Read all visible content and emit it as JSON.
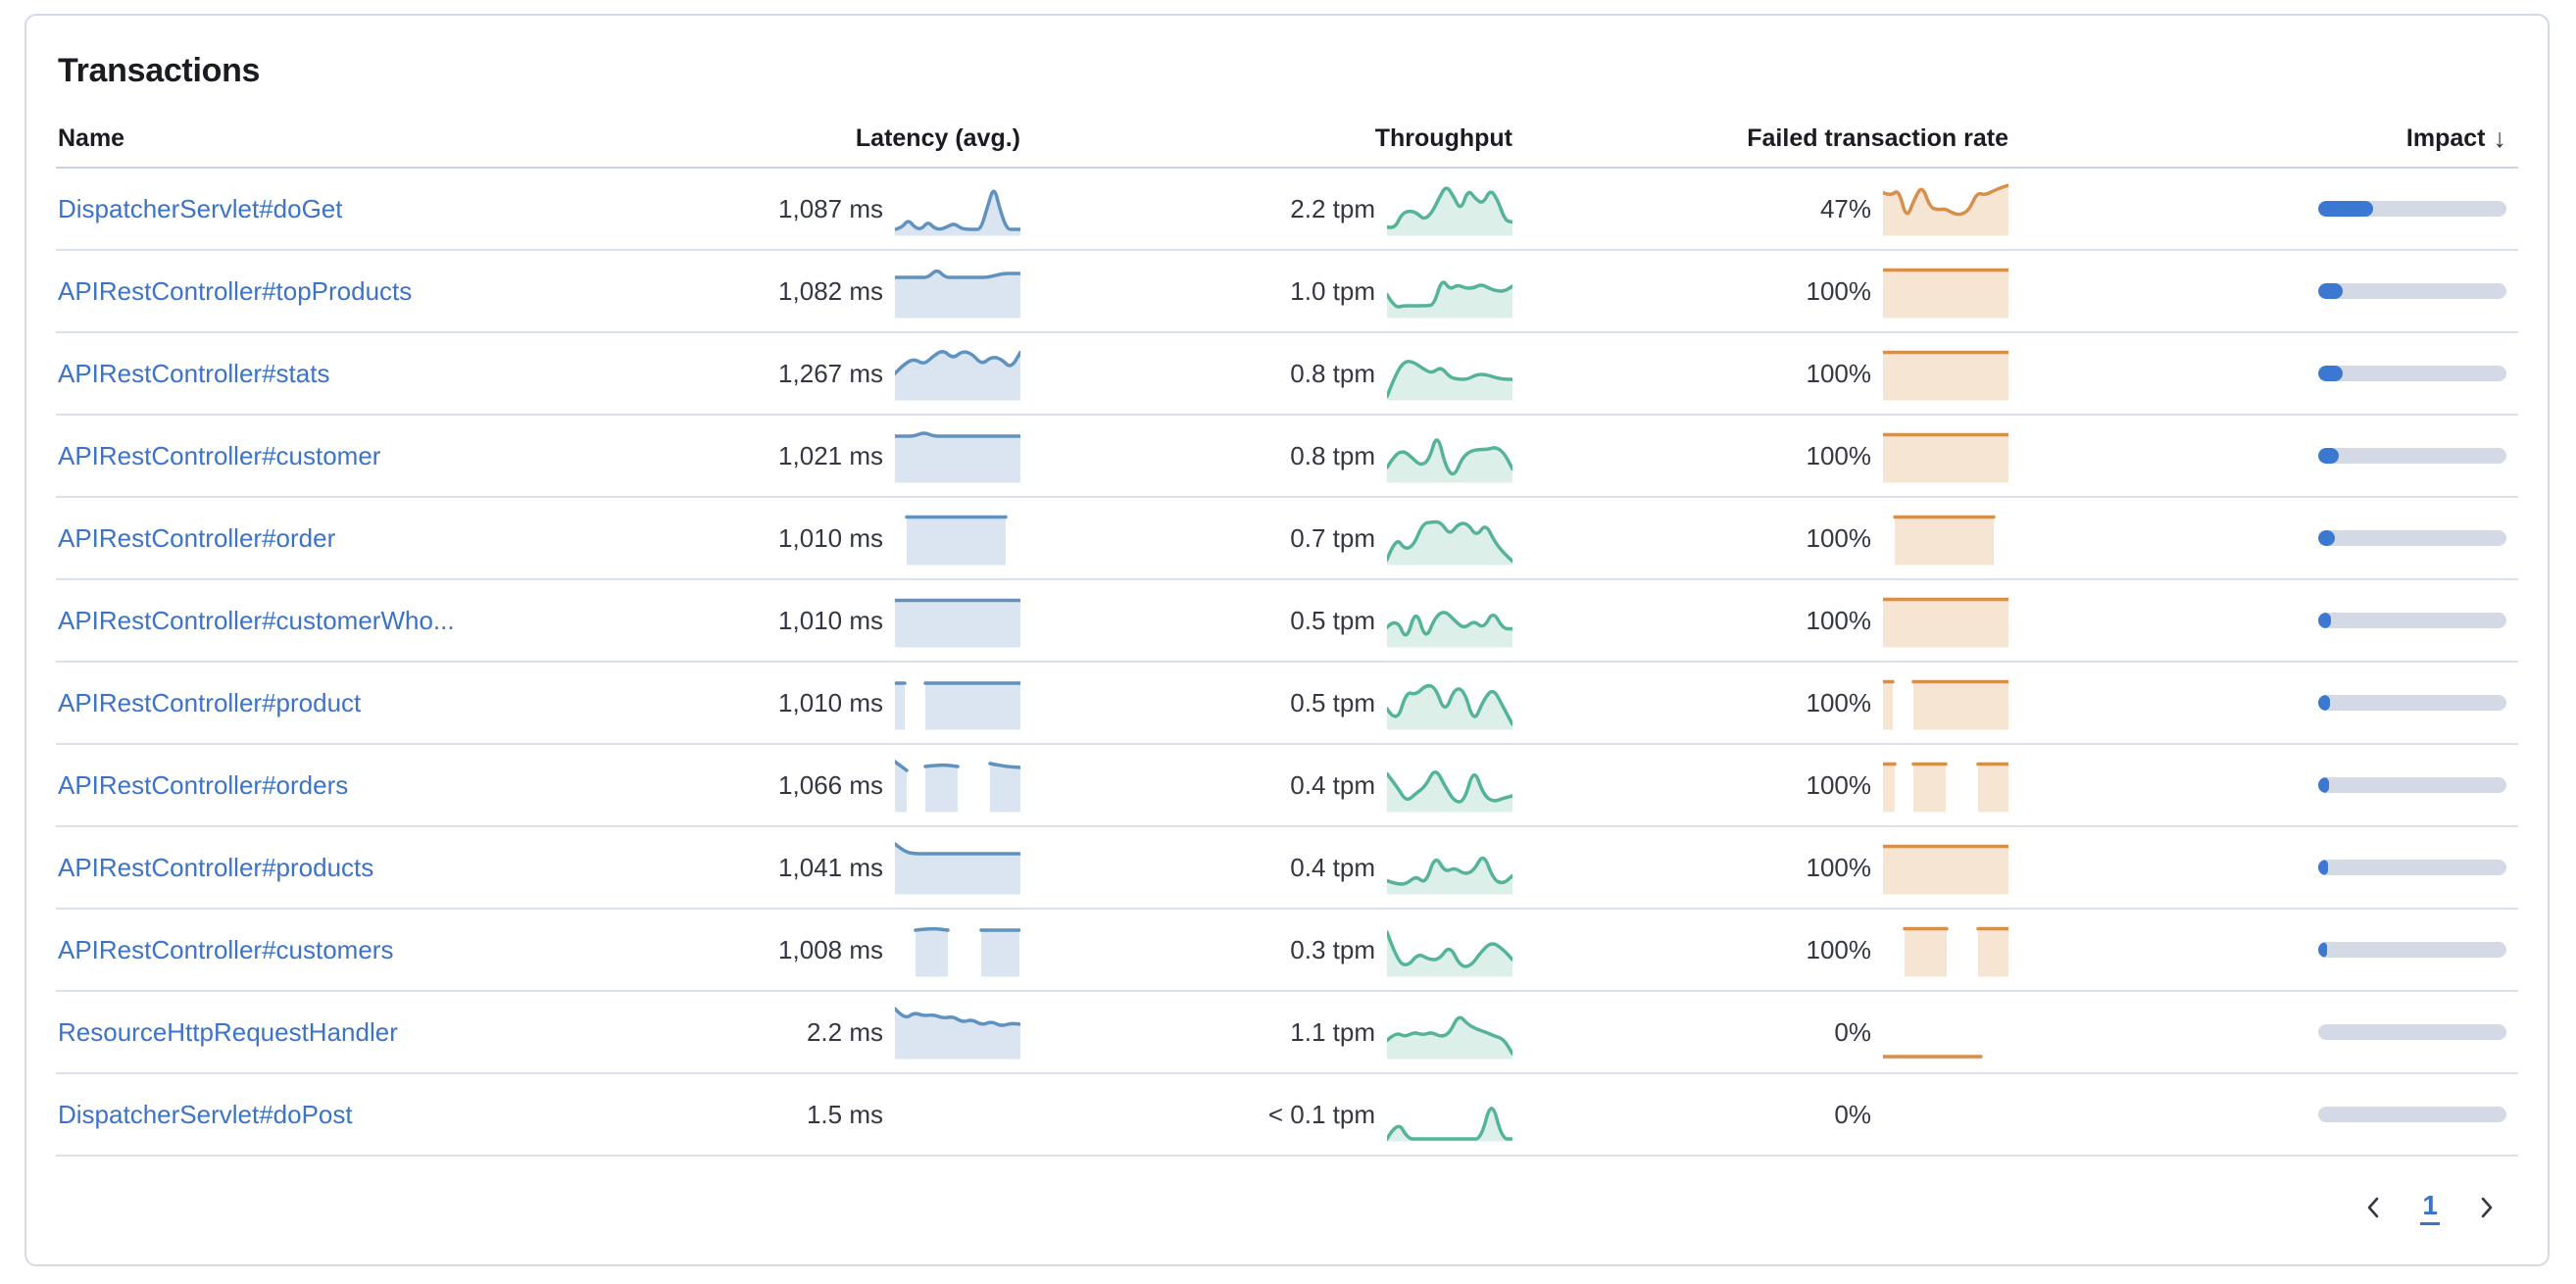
{
  "panel": {
    "title": "Transactions"
  },
  "colors": {
    "link": "#3b73c9",
    "latency_line": "#6092c0",
    "latency_fill": "#dae5f1",
    "throughput_line": "#54b399",
    "throughput_fill": "#dcefe8",
    "failed_line": "#d78f4c",
    "failed_fill": "#f6e5d3",
    "impact_fill": "#3b78d2",
    "impact_track": "#d3dae6"
  },
  "table": {
    "columns": [
      {
        "label": "Name"
      },
      {
        "label": "Latency (avg.)"
      },
      {
        "label": "Throughput"
      },
      {
        "label": "Failed transaction rate"
      },
      {
        "label": "Impact",
        "sort": "desc",
        "sort_icon": "↓"
      }
    ],
    "rows": [
      {
        "name": "DispatcherServlet#doGet",
        "latency": "1,087 ms",
        "throughput": "2.2 tpm",
        "failed_rate": "47%",
        "impact": 0.29,
        "latency_spark": {
          "segments": [
            {
              "x": [
                0,
                128
              ],
              "v": [
                0.1,
                0.13,
                0.3,
                0.14,
                0.1,
                0.26,
                0.12,
                0.1,
                0.16,
                0.22,
                0.12,
                0.1,
                0.1,
                0.1,
                0.55,
                1.0,
                0.45,
                0.1,
                0.1,
                0.1
              ]
            }
          ]
        },
        "throughput_spark": {
          "segments": [
            {
              "x": [
                0,
                128
              ],
              "v": [
                0.15,
                0.1,
                0.42,
                0.48,
                0.44,
                0.3,
                0.42,
                0.72,
                1.0,
                0.78,
                0.48,
                0.92,
                0.72,
                0.62,
                0.92,
                0.7,
                0.28,
                0.25
              ]
            }
          ]
        },
        "failed_spark": {
          "segments": [
            {
              "x": [
                0,
                128
              ],
              "v": [
                0.85,
                0.78,
                0.92,
                0.3,
                0.72,
                1.0,
                0.55,
                0.5,
                0.52,
                0.42,
                0.4,
                0.5,
                0.85,
                0.8,
                0.88,
                0.95,
                1.0
              ]
            }
          ]
        }
      },
      {
        "name": "APIRestController#topProducts",
        "latency": "1,082 ms",
        "throughput": "1.0 tpm",
        "failed_rate": "100%",
        "impact": 0.13,
        "latency_spark": {
          "segments": [
            {
              "x": [
                0,
                128
              ],
              "v": [
                0.8,
                0.8,
                0.8,
                0.8,
                0.8,
                0.97,
                0.8,
                0.8,
                0.8,
                0.8,
                0.8,
                0.8,
                0.84,
                0.88,
                0.88,
                0.88
              ]
            }
          ]
        },
        "throughput_spark": {
          "segments": [
            {
              "x": [
                0,
                128
              ],
              "v": [
                0.45,
                0.18,
                0.22,
                0.22,
                0.22,
                0.22,
                0.24,
                0.78,
                0.55,
                0.65,
                0.58,
                0.58,
                0.66,
                0.58,
                0.52,
                0.52,
                0.62
              ]
            }
          ]
        },
        "failed_spark": {
          "segments": [
            {
              "x": [
                0,
                128
              ],
              "v": [
                0.95,
                0.95,
                0.95,
                0.95
              ]
            }
          ]
        }
      },
      {
        "name": "APIRestController#stats",
        "latency": "1,267 ms",
        "throughput": "0.8 tpm",
        "failed_rate": "100%",
        "impact": 0.13,
        "latency_spark": {
          "segments": [
            {
              "x": [
                0,
                128
              ],
              "v": [
                0.52,
                0.72,
                0.82,
                0.7,
                0.88,
                1.0,
                0.82,
                0.98,
                0.92,
                0.7,
                0.86,
                0.82,
                0.62,
                0.95
              ]
            }
          ]
        },
        "throughput_spark": {
          "segments": [
            {
              "x": [
                0,
                128
              ],
              "v": [
                0.05,
                0.52,
                0.78,
                0.75,
                0.62,
                0.52,
                0.66,
                0.44,
                0.4,
                0.4,
                0.5,
                0.5,
                0.44,
                0.4,
                0.4
              ]
            }
          ]
        },
        "failed_spark": {
          "segments": [
            {
              "x": [
                0,
                128
              ],
              "v": [
                0.95,
                0.95,
                0.95,
                0.95
              ]
            }
          ]
        }
      },
      {
        "name": "APIRestController#customer",
        "latency": "1,021 ms",
        "throughput": "0.8 tpm",
        "failed_rate": "100%",
        "impact": 0.11,
        "latency_spark": {
          "segments": [
            {
              "x": [
                0,
                128
              ],
              "v": [
                0.92,
                0.92,
                0.92,
                1.0,
                0.92,
                0.92,
                0.92,
                0.92,
                0.92,
                0.92,
                0.92,
                0.92,
                0.92,
                0.92
              ]
            }
          ]
        },
        "throughput_spark": {
          "segments": [
            {
              "x": [
                0,
                128
              ],
              "v": [
                0.28,
                0.55,
                0.62,
                0.48,
                0.32,
                0.42,
                1.0,
                0.3,
                0.08,
                0.48,
                0.62,
                0.65,
                0.65,
                0.7,
                0.58,
                0.25
              ]
            }
          ]
        },
        "failed_spark": {
          "segments": [
            {
              "x": [
                0,
                128
              ],
              "v": [
                0.95,
                0.95,
                0.95,
                0.95
              ]
            }
          ]
        }
      },
      {
        "name": "APIRestController#order",
        "latency": "1,010 ms",
        "throughput": "0.7 tpm",
        "failed_rate": "100%",
        "impact": 0.09,
        "latency_spark": {
          "segments": [
            {
              "x": [
                12,
                113
              ],
              "v": [
                0.95,
                0.95,
                0.95
              ]
            }
          ]
        },
        "throughput_spark": {
          "segments": [
            {
              "x": [
                0,
                128
              ],
              "v": [
                0.08,
                0.55,
                0.28,
                0.38,
                0.82,
                0.85,
                0.85,
                0.58,
                0.82,
                0.82,
                0.55,
                0.82,
                0.45,
                0.22,
                0.05
              ]
            }
          ]
        },
        "failed_spark": {
          "segments": [
            {
              "x": [
                12,
                113
              ],
              "v": [
                0.95,
                0.95,
                0.95
              ]
            }
          ]
        }
      },
      {
        "name": "APIRestController#customerWho...",
        "latency": "1,010 ms",
        "throughput": "0.5 tpm",
        "failed_rate": "100%",
        "impact": 0.07,
        "latency_spark": {
          "segments": [
            {
              "x": [
                0,
                128
              ],
              "v": [
                0.93,
                0.93,
                0.93,
                0.93
              ]
            }
          ]
        },
        "throughput_spark": {
          "segments": [
            {
              "x": [
                0,
                128
              ],
              "v": [
                0.38,
                0.58,
                0.08,
                0.78,
                0.1,
                0.6,
                0.72,
                0.52,
                0.35,
                0.52,
                0.35,
                0.72,
                0.35,
                0.35
              ]
            }
          ]
        },
        "failed_spark": {
          "segments": [
            {
              "x": [
                0,
                128
              ],
              "v": [
                0.95,
                0.95,
                0.95,
                0.95
              ]
            }
          ]
        }
      },
      {
        "name": "APIRestController#product",
        "latency": "1,010 ms",
        "throughput": "0.5 tpm",
        "failed_rate": "100%",
        "impact": 0.065,
        "latency_spark": {
          "segments": [
            {
              "x": [
                0,
                10
              ],
              "v": [
                0.92,
                0.92
              ]
            },
            {
              "x": [
                31,
                128
              ],
              "v": [
                0.92,
                0.92,
                0.92
              ]
            }
          ]
        },
        "throughput_spark": {
          "segments": [
            {
              "x": [
                0,
                128
              ],
              "v": [
                0.4,
                0.08,
                0.75,
                0.68,
                0.88,
                0.85,
                0.3,
                0.82,
                0.78,
                0.1,
                0.58,
                0.82,
                0.45,
                0.08
              ]
            }
          ]
        },
        "failed_spark": {
          "segments": [
            {
              "x": [
                0,
                10
              ],
              "v": [
                0.95,
                0.95
              ]
            },
            {
              "x": [
                31,
                128
              ],
              "v": [
                0.95,
                0.95,
                0.95
              ]
            }
          ]
        }
      },
      {
        "name": "APIRestController#orders",
        "latency": "1,066 ms",
        "throughput": "0.4 tpm",
        "failed_rate": "100%",
        "impact": 0.055,
        "latency_spark": {
          "segments": [
            {
              "x": [
                0,
                12
              ],
              "v": [
                1.0,
                0.82
              ]
            },
            {
              "x": [
                31,
                64
              ],
              "v": [
                0.9,
                0.94,
                0.9
              ]
            },
            {
              "x": [
                97,
                128
              ],
              "v": [
                0.96,
                0.9,
                0.88
              ]
            }
          ]
        },
        "throughput_spark": {
          "segments": [
            {
              "x": [
                0,
                128
              ],
              "v": [
                0.75,
                0.5,
                0.18,
                0.35,
                0.5,
                0.88,
                0.5,
                0.18,
                0.18,
                0.88,
                0.32,
                0.18,
                0.25,
                0.3
              ]
            }
          ]
        },
        "failed_spark": {
          "segments": [
            {
              "x": [
                0,
                12
              ],
              "v": [
                0.95,
                0.95
              ]
            },
            {
              "x": [
                31,
                64
              ],
              "v": [
                0.95,
                0.95
              ]
            },
            {
              "x": [
                97,
                128
              ],
              "v": [
                0.95,
                0.95
              ]
            }
          ]
        }
      },
      {
        "name": "APIRestController#products",
        "latency": "1,041 ms",
        "throughput": "0.4 tpm",
        "failed_rate": "100%",
        "impact": 0.05,
        "latency_spark": {
          "segments": [
            {
              "x": [
                0,
                128
              ],
              "v": [
                1.0,
                0.84,
                0.8,
                0.8,
                0.8,
                0.8,
                0.8,
                0.8,
                0.8,
                0.8,
                0.8,
                0.8,
                0.8,
                0.8
              ]
            }
          ]
        },
        "throughput_spark": {
          "segments": [
            {
              "x": [
                0,
                128
              ],
              "v": [
                0.25,
                0.18,
                0.18,
                0.35,
                0.18,
                0.78,
                0.42,
                0.52,
                0.38,
                0.45,
                0.82,
                0.28,
                0.18,
                0.35
              ]
            }
          ]
        },
        "failed_spark": {
          "segments": [
            {
              "x": [
                0,
                128
              ],
              "v": [
                0.95,
                0.95,
                0.95,
                0.95
              ]
            }
          ]
        }
      },
      {
        "name": "APIRestController#customers",
        "latency": "1,008 ms",
        "throughput": "0.3 tpm",
        "failed_rate": "100%",
        "impact": 0.045,
        "latency_spark": {
          "segments": [
            {
              "x": [
                21,
                54
              ],
              "v": [
                0.92,
                0.96,
                0.92
              ]
            },
            {
              "x": [
                88,
                127
              ],
              "v": [
                0.92,
                0.92
              ]
            }
          ]
        },
        "throughput_spark": {
          "segments": [
            {
              "x": [
                0,
                128
              ],
              "v": [
                0.88,
                0.28,
                0.18,
                0.45,
                0.32,
                0.32,
                0.62,
                0.18,
                0.18,
                0.48,
                0.68,
                0.55,
                0.32
              ]
            }
          ]
        },
        "failed_spark": {
          "segments": [
            {
              "x": [
                22,
                65
              ],
              "v": [
                0.95,
                0.95
              ]
            },
            {
              "x": [
                97,
                128
              ],
              "v": [
                0.95,
                0.95
              ]
            }
          ]
        }
      },
      {
        "name": "ResourceHttpRequestHandler",
        "latency": "2.2 ms",
        "throughput": "1.1 tpm",
        "failed_rate": "0%",
        "impact": 0,
        "latency_spark": {
          "segments": [
            {
              "x": [
                0,
                128
              ],
              "v": [
                1.0,
                0.78,
                0.92,
                0.85,
                0.88,
                0.8,
                0.84,
                0.72,
                0.78,
                0.66,
                0.74,
                0.64,
                0.7,
                0.68
              ]
            }
          ]
        },
        "throughput_spark": {
          "segments": [
            {
              "x": [
                0,
                128
              ],
              "v": [
                0.35,
                0.52,
                0.42,
                0.52,
                0.46,
                0.52,
                0.42,
                0.5,
                0.88,
                0.68,
                0.58,
                0.52,
                0.44,
                0.38,
                0.08
              ]
            }
          ]
        },
        "failed_spark": {
          "segments": [
            {
              "x": [
                0,
                100
              ],
              "v": [
                0.02,
                0.02
              ]
            }
          ]
        }
      },
      {
        "name": "DispatcherServlet#doPost",
        "latency": "1.5 ms",
        "throughput": "< 0.1 tpm",
        "failed_rate": "0%",
        "impact": 0,
        "latency_spark": null,
        "throughput_spark": {
          "segments": [
            {
              "x": [
                0,
                128
              ],
              "v": [
                0.02,
                0.4,
                0.02,
                0.02,
                0.02,
                0.02,
                0.02,
                0.02,
                0.02,
                0.02,
                0.85,
                0.02,
                0.02
              ]
            }
          ]
        },
        "failed_spark": null
      }
    ]
  },
  "pagination": {
    "page": "1"
  }
}
